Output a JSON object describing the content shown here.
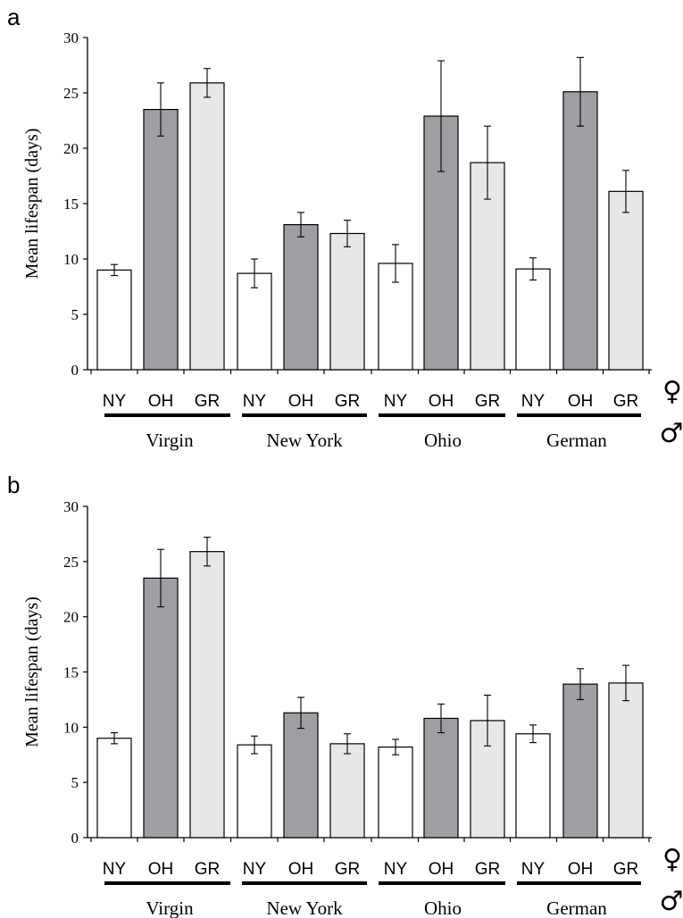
{
  "chart_data": [
    {
      "type": "bar",
      "panel": "a",
      "ylabel": "Mean lifespan (days)",
      "ylim": [
        0,
        30
      ],
      "yticks": [
        "0",
        "5",
        "10",
        "15",
        "20",
        "25",
        "30"
      ],
      "categories": [
        "NY",
        "OH",
        "GR",
        "NY",
        "OH",
        "GR",
        "NY",
        "OH",
        "GR",
        "NY",
        "OH",
        "GR"
      ],
      "groups": [
        "Virgin",
        "New York",
        "Ohio",
        "German"
      ],
      "values": [
        9.0,
        23.5,
        25.9,
        8.7,
        13.1,
        12.3,
        9.6,
        22.9,
        18.7,
        9.1,
        25.1,
        16.1
      ],
      "errors": [
        0.5,
        2.4,
        1.3,
        1.3,
        1.1,
        1.2,
        1.7,
        5.0,
        3.3,
        1.0,
        3.1,
        1.9
      ],
      "fills": [
        "#ffffff",
        "#9d9fa3",
        "#e6e7e8",
        "#ffffff",
        "#9d9fa3",
        "#e6e7e8",
        "#ffffff",
        "#9d9fa3",
        "#e6e7e8",
        "#ffffff",
        "#9d9fa3",
        "#e6e7e8"
      ],
      "female_symbol": "♀",
      "male_symbol": "♂"
    },
    {
      "type": "bar",
      "panel": "b",
      "ylabel": "Mean lifespan (days)",
      "ylim": [
        0,
        30
      ],
      "yticks": [
        "0",
        "5",
        "10",
        "15",
        "20",
        "25",
        "30"
      ],
      "categories": [
        "NY",
        "OH",
        "GR",
        "NY",
        "OH",
        "GR",
        "NY",
        "OH",
        "GR",
        "NY",
        "OH",
        "GR"
      ],
      "groups": [
        "Virgin",
        "New York",
        "Ohio",
        "German"
      ],
      "values": [
        9.0,
        23.5,
        25.9,
        8.4,
        11.3,
        8.5,
        8.2,
        10.8,
        10.6,
        9.4,
        13.9,
        14.0
      ],
      "errors": [
        0.5,
        2.6,
        1.3,
        0.8,
        1.4,
        0.9,
        0.7,
        1.3,
        2.3,
        0.8,
        1.4,
        1.6
      ],
      "fills": [
        "#ffffff",
        "#9d9fa3",
        "#e6e7e8",
        "#ffffff",
        "#9d9fa3",
        "#e6e7e8",
        "#ffffff",
        "#9d9fa3",
        "#e6e7e8",
        "#ffffff",
        "#9d9fa3",
        "#e6e7e8"
      ],
      "female_symbol": "♀",
      "male_symbol": "♂"
    }
  ]
}
